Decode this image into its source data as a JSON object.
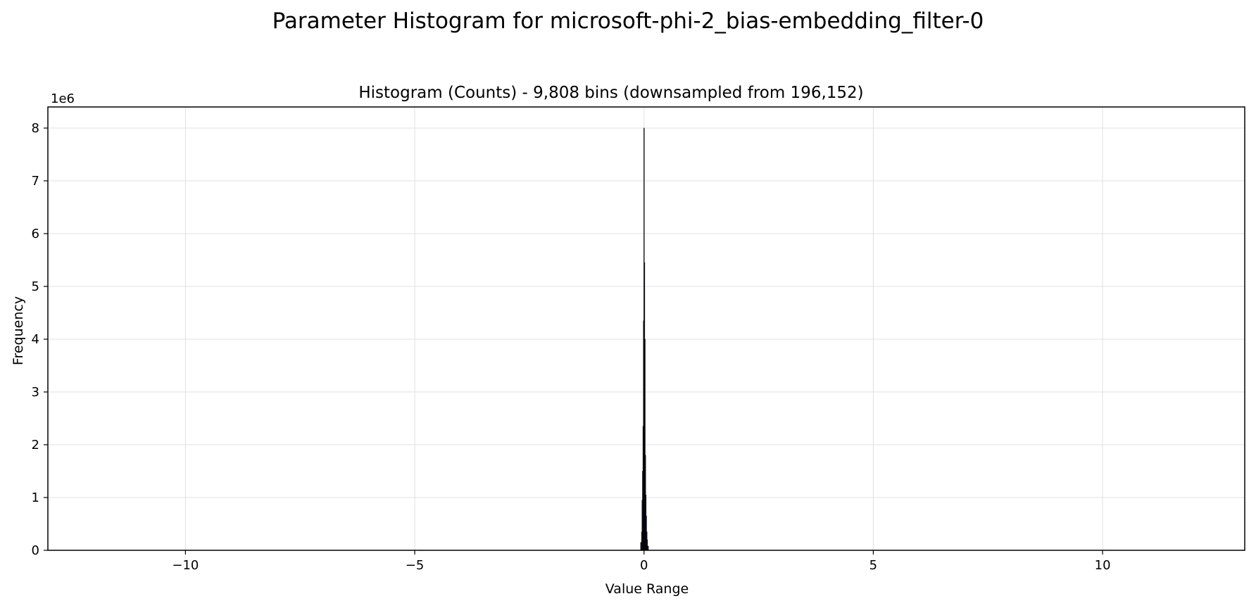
{
  "chart_data": {
    "type": "bar",
    "title": "Parameter Histogram for microsoft-phi-2_bias-embedding_filter-0",
    "subtitle": "Histogram (Counts) - 9,808 bins (downsampled from 196,152)",
    "xlabel": "Value Range",
    "ylabel": "Frequency",
    "y_offset_label": "1e6",
    "xlim": [
      -13.0,
      13.1
    ],
    "ylim": [
      0,
      8400000
    ],
    "x_ticks": [
      -10,
      -5,
      0,
      5,
      10
    ],
    "x_tick_labels": [
      "−10",
      "−5",
      "0",
      "5",
      "10"
    ],
    "y_ticks": [
      0,
      1000000,
      2000000,
      3000000,
      4000000,
      5000000,
      6000000,
      7000000,
      8000000
    ],
    "y_tick_labels": [
      "0",
      "1",
      "2",
      "3",
      "4",
      "5",
      "6",
      "7",
      "8"
    ],
    "grid": true,
    "bar_color": "#1a1a3a",
    "bar_edge_color": "#000000",
    "grid_color": "#e0e0e0",
    "bins": [
      {
        "x": -0.07,
        "value": 150000
      },
      {
        "x": -0.05,
        "value": 350000
      },
      {
        "x": -0.04,
        "value": 950000
      },
      {
        "x": -0.03,
        "value": 1500000
      },
      {
        "x": -0.02,
        "value": 2350000
      },
      {
        "x": -0.01,
        "value": 4350000
      },
      {
        "x": 0.0,
        "value": 8000000
      },
      {
        "x": 0.01,
        "value": 5450000
      },
      {
        "x": 0.02,
        "value": 4000000
      },
      {
        "x": 0.03,
        "value": 1800000
      },
      {
        "x": 0.04,
        "value": 1050000
      },
      {
        "x": 0.05,
        "value": 650000
      },
      {
        "x": 0.06,
        "value": 350000
      },
      {
        "x": 0.07,
        "value": 200000
      },
      {
        "x": 0.09,
        "value": 80000
      }
    ]
  }
}
